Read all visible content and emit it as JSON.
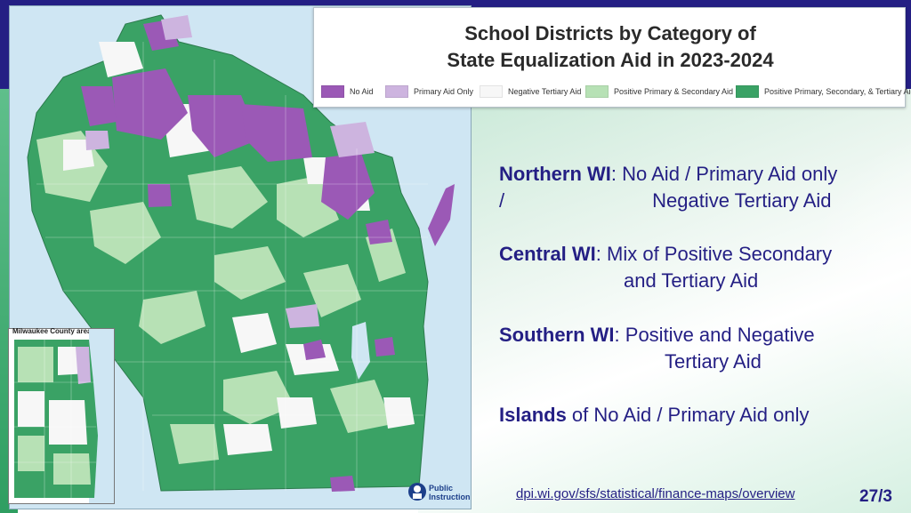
{
  "legend": {
    "title_line1": "School Districts by Category of",
    "title_line2": "State Equalization Aid in 2023-2024",
    "items": [
      {
        "label": "No Aid",
        "color": "#9b59b6"
      },
      {
        "label": "Primary Aid Only",
        "color": "#cdb4df"
      },
      {
        "label": "Negative Tertiary Aid",
        "color": "#f7f7f7"
      },
      {
        "label": "Positive Primary & Secondary Aid",
        "color": "#b7e1b5"
      },
      {
        "label": "Positive Primary, Secondary, & Tertiary Aid",
        "color": "#3aa265"
      }
    ]
  },
  "inset": {
    "title": "Milwaukee County area"
  },
  "logo": {
    "line1": "Public",
    "line2": "Instruction"
  },
  "summary": {
    "northern": {
      "region": "Northern WI",
      "text_a": ": No Aid / Primary Aid only",
      "text_b": "/",
      "text_c": "Negative Tertiary Aid"
    },
    "central": {
      "region": "Central WI",
      "text_a": ": Mix of Positive Secondary",
      "text_b": "and Tertiary Aid"
    },
    "southern": {
      "region": "Southern WI",
      "text_a": ": Positive and Negative",
      "text_b": "Tertiary Aid"
    },
    "islands": {
      "region": "Islands",
      "text_a": " of No Aid / Primary Aid only"
    }
  },
  "footer": {
    "url": "dpi.wi.gov/sfs/statistical/finance-maps/overview",
    "page": "27/3"
  }
}
